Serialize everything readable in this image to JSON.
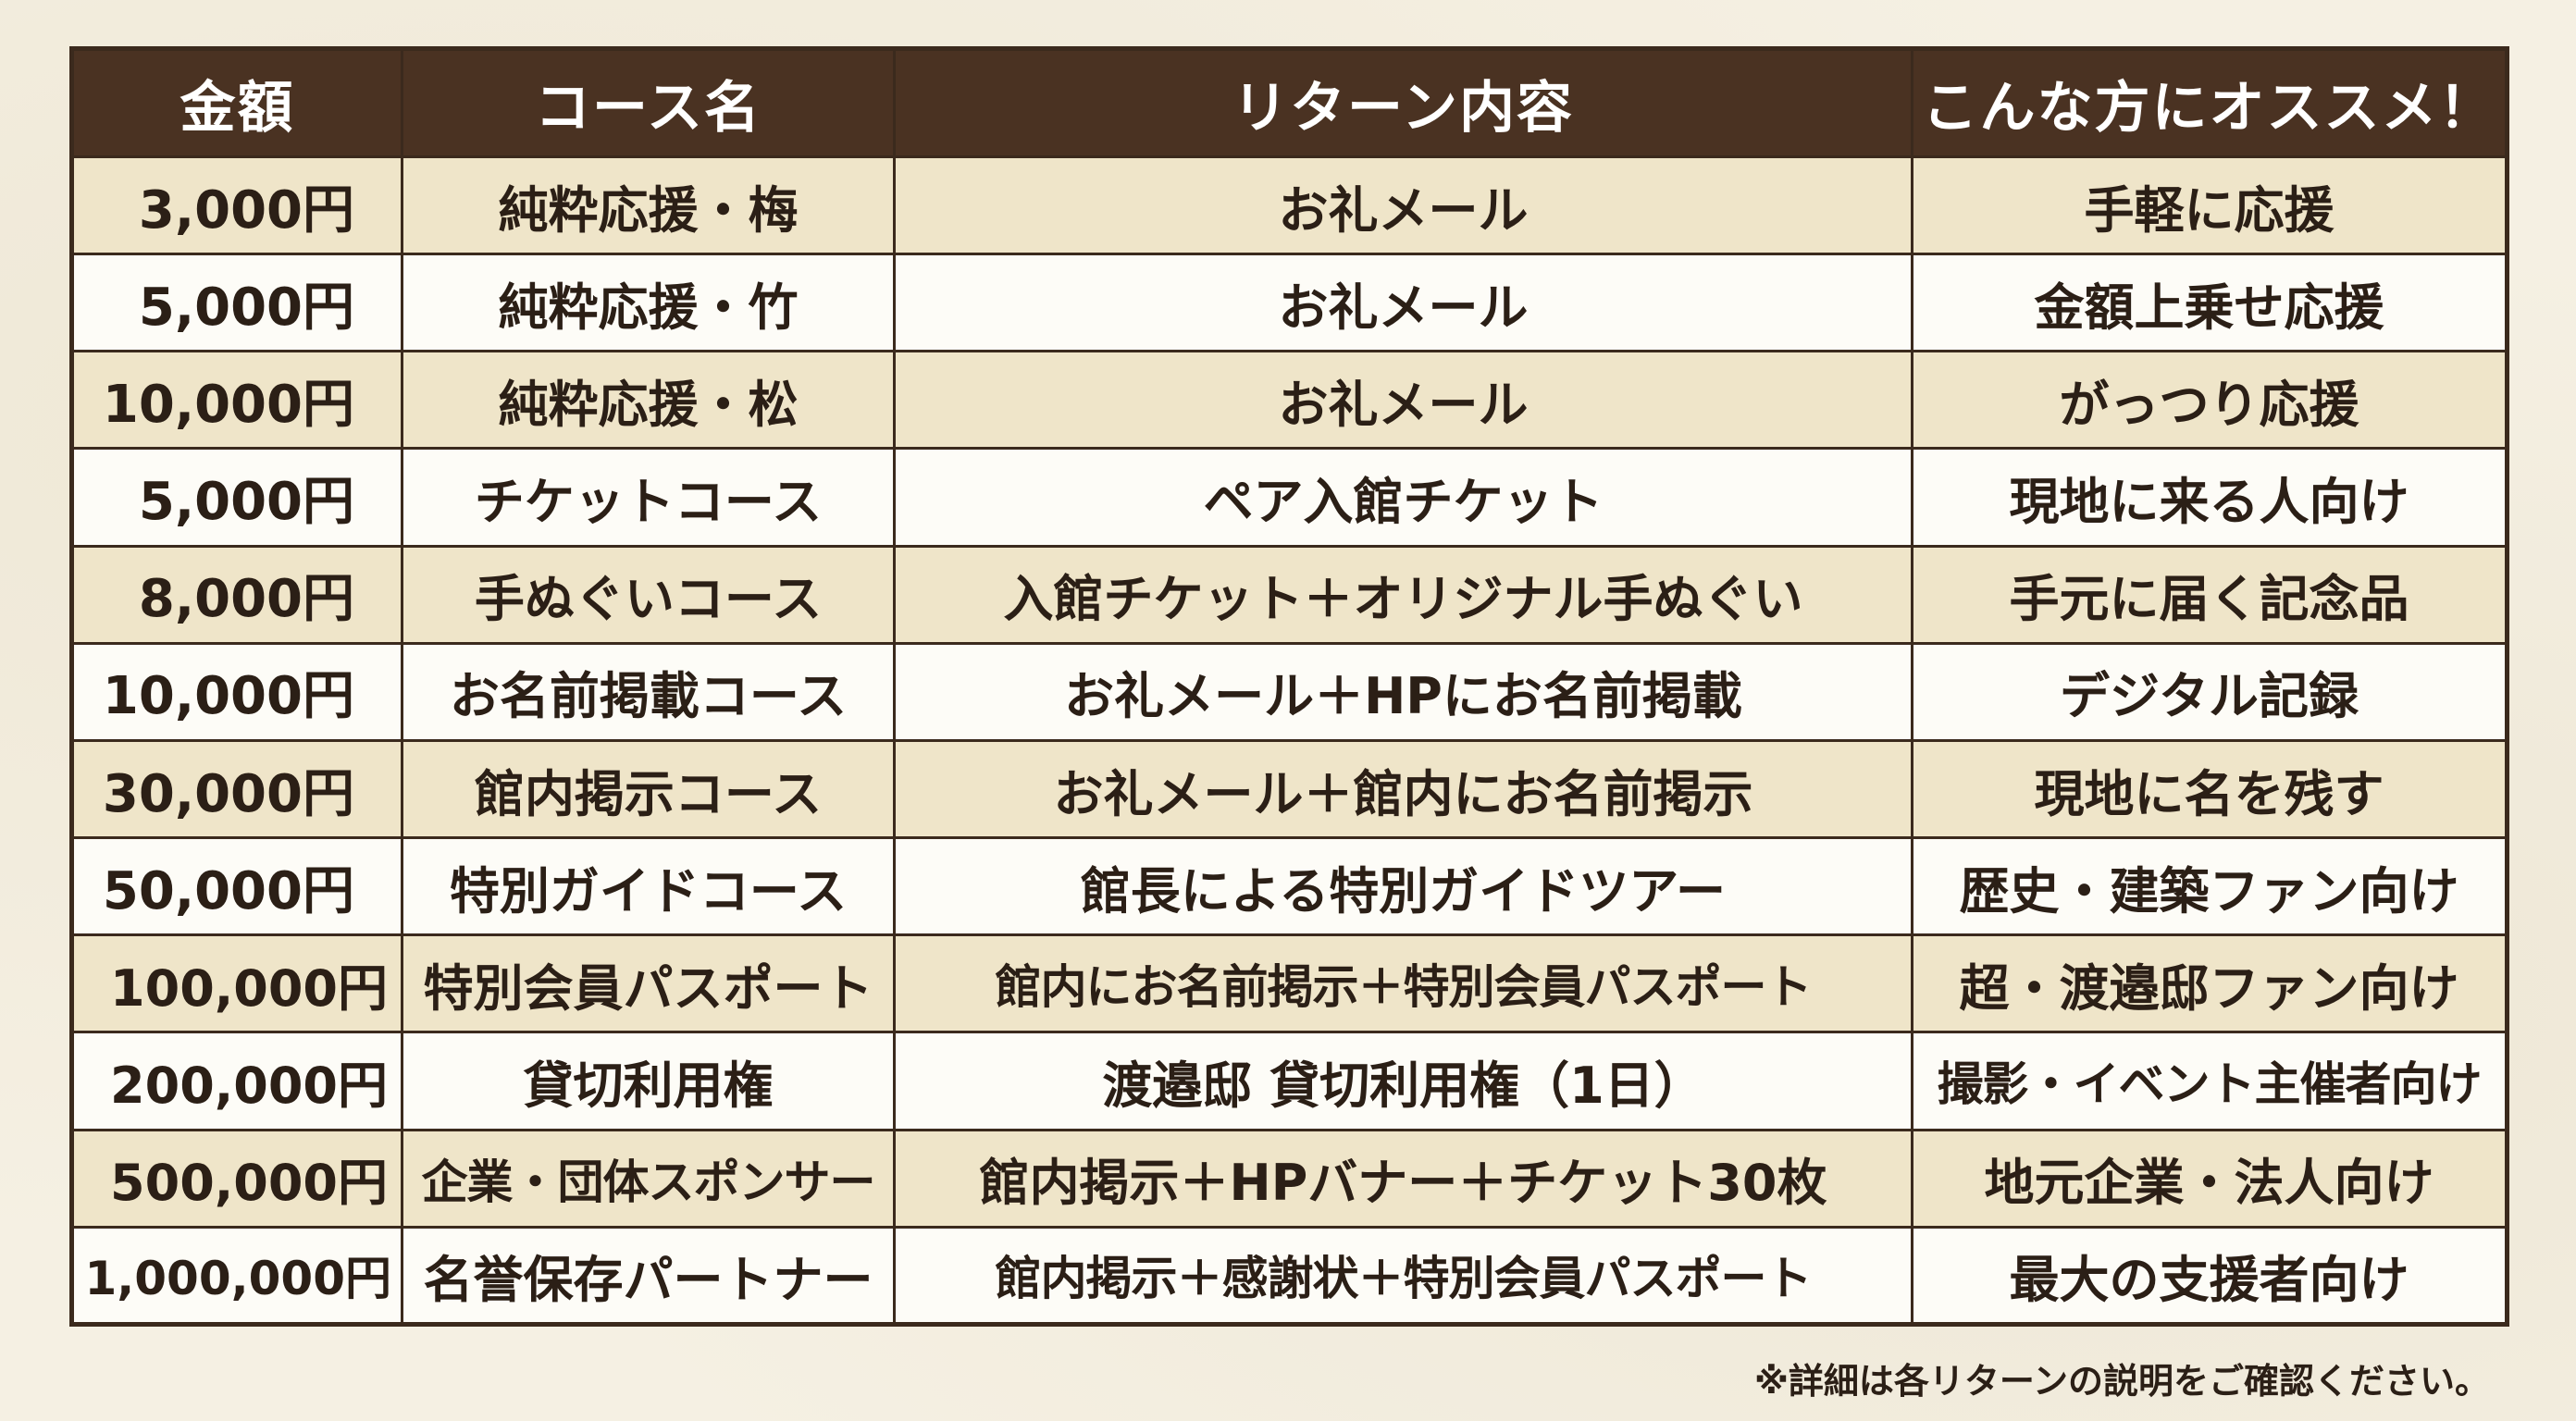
{
  "table": {
    "headers": {
      "amount": "金額",
      "course": "コース名",
      "reward": "リターン内容",
      "recommend": "こんな方にオススメ！"
    },
    "rows": [
      {
        "amount": "3,000円",
        "course": "純粋応援・梅",
        "reward": "お礼メール",
        "recommend": "手軽に応援"
      },
      {
        "amount": "5,000円",
        "course": "純粋応援・竹",
        "reward": "お礼メール",
        "recommend": "金額上乗せ応援"
      },
      {
        "amount": "10,000円",
        "course": "純粋応援・松",
        "reward": "お礼メール",
        "recommend": "がっつり応援"
      },
      {
        "amount": "5,000円",
        "course": "チケットコース",
        "reward": "ペア入館チケット",
        "recommend": "現地に来る人向け"
      },
      {
        "amount": "8,000円",
        "course": "手ぬぐいコース",
        "reward": "入館チケット＋オリジナル手ぬぐい",
        "recommend": "手元に届く記念品"
      },
      {
        "amount": "10,000円",
        "course": "お名前掲載コース",
        "reward": "お礼メール＋HPにお名前掲載",
        "recommend": "デジタル記録"
      },
      {
        "amount": "30,000円",
        "course": "館内掲示コース",
        "reward": "お礼メール＋館内にお名前掲示",
        "recommend": "現地に名を残す"
      },
      {
        "amount": "50,000円",
        "course": "特別ガイドコース",
        "reward": "館長による特別ガイドツアー",
        "recommend": "歴史・建築ファン向け"
      },
      {
        "amount": "100,000円",
        "course": "特別会員パスポート",
        "reward": "館内にお名前掲示＋特別会員パスポート",
        "recommend": "超・渡邉邸ファン向け"
      },
      {
        "amount": "200,000円",
        "course": "貸切利用権",
        "reward": "渡邉邸 貸切利用権（1日）",
        "recommend": "撮影・イベント主催者向け"
      },
      {
        "amount": "500,000円",
        "course": "企業・団体スポンサー",
        "reward": "館内掲示＋HPバナー＋チケット30枚",
        "recommend": "地元企業・法人向け"
      },
      {
        "amount": "1,000,000円",
        "course": "名誉保存パートナー",
        "reward": "館内掲示＋感謝状＋特別会員パスポート",
        "recommend": "最大の支援者向け"
      }
    ]
  },
  "footnote": "※詳細は各リターンの説明をご確認ください。",
  "colors": {
    "header_bg": "#4a3222",
    "header_text": "#ffffff",
    "row_odd_bg": "#efe5c9",
    "row_even_bg": "#fdfcf7",
    "border": "#3b2a1d",
    "page_bg": "#f5f0e3"
  }
}
